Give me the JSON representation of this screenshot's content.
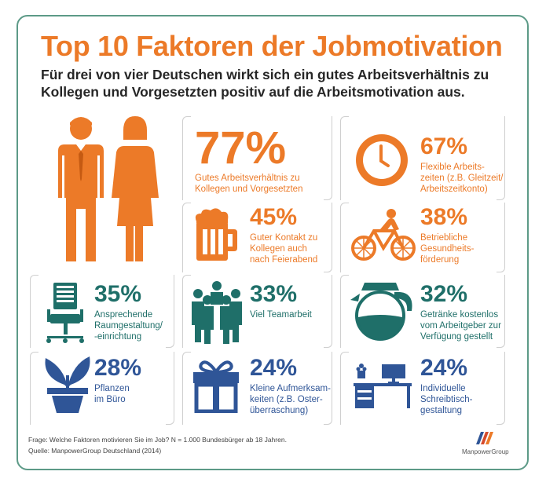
{
  "title": "Top 10 Faktoren der Jobmotivation",
  "subtitle": "Für drei von vier Deutschen wirkt sich ein gutes Arbeitsverhältnis zu Kollegen und Vorgesetzten positiv auf die Arbeitsmotivation aus.",
  "chart_data": {
    "type": "table",
    "title": "Top 10 Faktoren der Jobmotivation",
    "categories": [
      "Gutes Arbeitsverhältnis zu Kollegen und Vorgesetzten",
      "Flexible Arbeitszeiten (z.B. Gleitzeit/ Arbeitszeitkonto)",
      "Guter Kontakt zu Kollegen auch nach Feierabend",
      "Betriebliche Gesundheitsförderung",
      "Ansprechende Raumgestaltung/-einrichtung",
      "Viel Teamarbeit",
      "Getränke kostenlos vom Arbeitgeber zur Verfügung gestellt",
      "Pflanzen im Büro",
      "Kleine Aufmerksamkeiten (z.B. Osterüberraschung)",
      "Individuelle Schreibtischgestaltung"
    ],
    "values": [
      77,
      67,
      45,
      38,
      35,
      33,
      32,
      28,
      24,
      24
    ],
    "unit": "%"
  },
  "factors": [
    {
      "pct": "77%",
      "l1": "Gutes Arbeitsverhältnis zu",
      "l2": "Kollegen und Vorgesetzten",
      "icon": "business-people-icon"
    },
    {
      "pct": "67%",
      "l1": "Flexible Arbeits-",
      "l2": "zeiten (z.B. Gleitzeit/",
      "l3": "Arbeitszeitkonto)",
      "icon": "clock-icon"
    },
    {
      "pct": "45%",
      "l1": "Guter Kontakt zu",
      "l2": "Kollegen auch",
      "l3": "nach Feierabend",
      "icon": "beer-mug-icon"
    },
    {
      "pct": "38%",
      "l1": "Betriebliche",
      "l2": "Gesundheits-",
      "l3": "förderung",
      "icon": "bicycle-icon"
    },
    {
      "pct": "35%",
      "l1": "Ansprechende",
      "l2": "Raumgestaltung/",
      "l3": "-einrichtung",
      "icon": "office-chair-icon"
    },
    {
      "pct": "33%",
      "l1": "Viel Teamarbeit",
      "icon": "team-icon"
    },
    {
      "pct": "32%",
      "l1": "Getränke kostenlos",
      "l2": "vom Arbeitgeber zur",
      "l3": "Verfügung gestellt",
      "icon": "coffee-pot-icon"
    },
    {
      "pct": "28%",
      "l1": "Pflanzen",
      "l2": "im Büro",
      "icon": "plant-icon"
    },
    {
      "pct": "24%",
      "l1": "Kleine Aufmerksam-",
      "l2": "keiten (z.B. Oster-",
      "l3": "überraschung)",
      "icon": "gift-icon"
    },
    {
      "pct": "24%",
      "l1": "Individuelle",
      "l2": "Schreibtisch-",
      "l3": "gestaltung",
      "icon": "desk-icon"
    }
  ],
  "footer": {
    "question": "Frage: Welche Faktoren motivieren Sie im Job? N = 1.000 Bundesbürger ab 18 Jahren.",
    "source": "Quelle: ManpowerGroup Deutschland (2014)"
  },
  "logo": {
    "text": "ManpowerGroup"
  },
  "colors": {
    "orange": "#ec7a28",
    "teal": "#1f6f69",
    "blue": "#2f5597",
    "frame": "#5c9a87"
  }
}
